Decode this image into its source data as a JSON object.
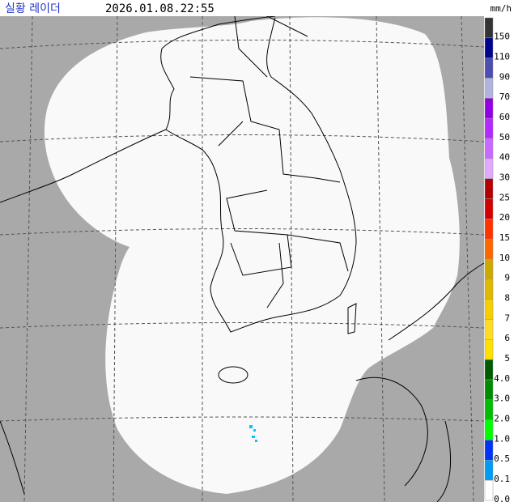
{
  "header": {
    "title": "실황 레이더",
    "timestamp": "2026.01.08.22:55"
  },
  "legend": {
    "unit": "mm/h",
    "items": [
      {
        "label": "150",
        "color": "#333333"
      },
      {
        "label": "110",
        "color": "#000390"
      },
      {
        "label": "90",
        "color": "#4c4eb1"
      },
      {
        "label": "70",
        "color": "#b3b4de"
      },
      {
        "label": "60",
        "color": "#9300e4"
      },
      {
        "label": "50",
        "color": "#b329ff"
      },
      {
        "label": "40",
        "color": "#c969ff"
      },
      {
        "label": "30",
        "color": "#dfa9ff"
      },
      {
        "label": "25",
        "color": "#b40000"
      },
      {
        "label": "20",
        "color": "#d20000"
      },
      {
        "label": "15",
        "color": "#ff3200"
      },
      {
        "label": "10",
        "color": "#ff6600"
      },
      {
        "label": "9",
        "color": "#ccaa00"
      },
      {
        "label": "8",
        "color": "#e0b900"
      },
      {
        "label": "7",
        "color": "#f9cd00"
      },
      {
        "label": "6",
        "color": "#ffdc1f"
      },
      {
        "label": "5",
        "color": "#ffe100"
      },
      {
        "label": "4.0",
        "color": "#005a00"
      },
      {
        "label": "3.0",
        "color": "#008c00"
      },
      {
        "label": "2.0",
        "color": "#00be00"
      },
      {
        "label": "1.0",
        "color": "#00ff00"
      },
      {
        "label": "0.5",
        "color": "#0033f5"
      },
      {
        "label": "0.1",
        "color": "#009bf5"
      },
      {
        "label": "0.0",
        "color": "#ffffff"
      }
    ]
  }
}
